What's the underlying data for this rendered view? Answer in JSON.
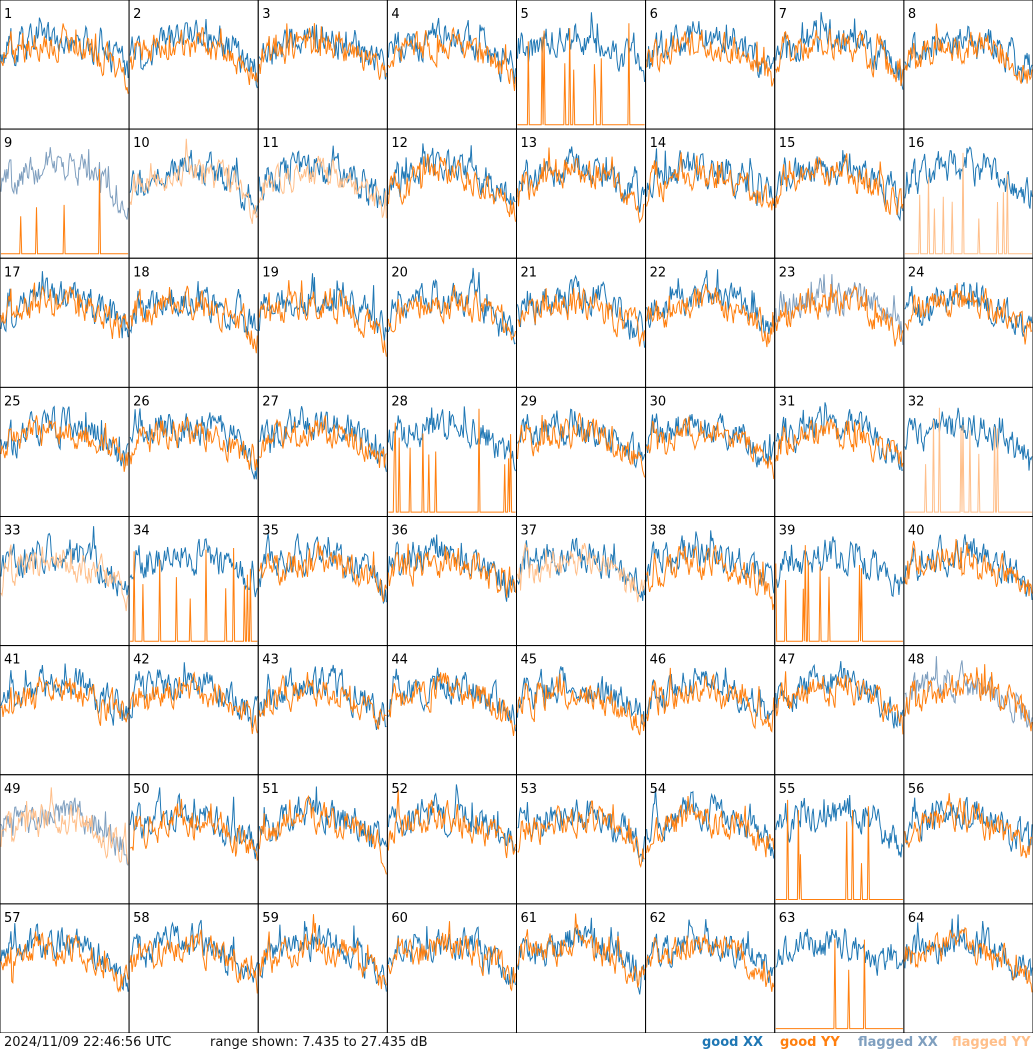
{
  "chart_data": {
    "type": "line",
    "title": "",
    "panels": [
      1,
      2,
      3,
      4,
      5,
      6,
      7,
      8,
      9,
      10,
      11,
      12,
      13,
      14,
      15,
      16,
      17,
      18,
      19,
      20,
      21,
      22,
      23,
      24,
      25,
      26,
      27,
      28,
      29,
      30,
      31,
      32,
      33,
      34,
      35,
      36,
      37,
      38,
      39,
      40,
      41,
      42,
      43,
      44,
      45,
      46,
      47,
      48,
      49,
      50,
      51,
      52,
      53,
      54,
      55,
      56,
      57,
      58,
      59,
      60,
      61,
      62,
      63,
      64
    ],
    "layout": {
      "rows": 8,
      "cols": 8
    },
    "y_range_db": [
      7.435,
      27.435
    ],
    "series": [
      {
        "name": "good XX",
        "color": "#1f77b4"
      },
      {
        "name": "good YY",
        "color": "#ff7f0e"
      },
      {
        "name": "flagged XX",
        "color": "#7f9fbf"
      },
      {
        "name": "flagged YY",
        "color": "#ffbf8a"
      }
    ],
    "flagged_xx_panels": [
      9,
      23,
      48,
      49
    ],
    "flagged_yy_panels": [
      10,
      11,
      16,
      32,
      33,
      37,
      49
    ],
    "spiky_panels": [
      5,
      9,
      16,
      28,
      32,
      34,
      39,
      55,
      63
    ],
    "grid": false
  },
  "footer": {
    "timestamp": "2024/11/09 22:46:56 UTC",
    "range_text": "range shown: 7.435 to 27.435 dB",
    "legend": {
      "good_xx": "good XX",
      "good_yy": "good YY",
      "flagged_xx": "flagged XX",
      "flagged_yy": "flagged YY"
    }
  }
}
